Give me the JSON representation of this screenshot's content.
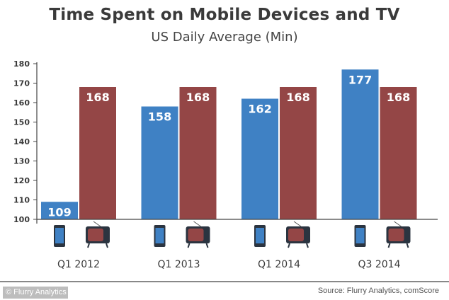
{
  "header": {
    "title": "Time Spent on Mobile Devices and TV",
    "subtitle": "US Daily Average (Min)"
  },
  "footer": {
    "source": "Source: Flurry Analytics, comScore",
    "logo_text": "© Flurry Analytics"
  },
  "colors": {
    "mobile": "#3f81c4",
    "tv": "#944646",
    "axis": "#444444",
    "text": "#3a3a3a"
  },
  "chart_data": {
    "type": "bar",
    "title": "Time Spent on Mobile Devices and TV",
    "subtitle": "US Daily Average (Min)",
    "xlabel": "",
    "ylabel": "",
    "categories": [
      "Q1 2012",
      "Q1 2013",
      "Q1 2014",
      "Q3 2014"
    ],
    "series": [
      {
        "name": "Mobile Devices",
        "icon": "smartphone-icon",
        "values": [
          109,
          158,
          162,
          177
        ]
      },
      {
        "name": "TV",
        "icon": "tv-icon",
        "values": [
          168,
          168,
          168,
          168
        ]
      }
    ],
    "ylim": [
      100,
      180
    ],
    "yticks": [
      100,
      110,
      120,
      130,
      140,
      150,
      160,
      170,
      180
    ],
    "grid": false,
    "legend": "icons below each bar"
  }
}
